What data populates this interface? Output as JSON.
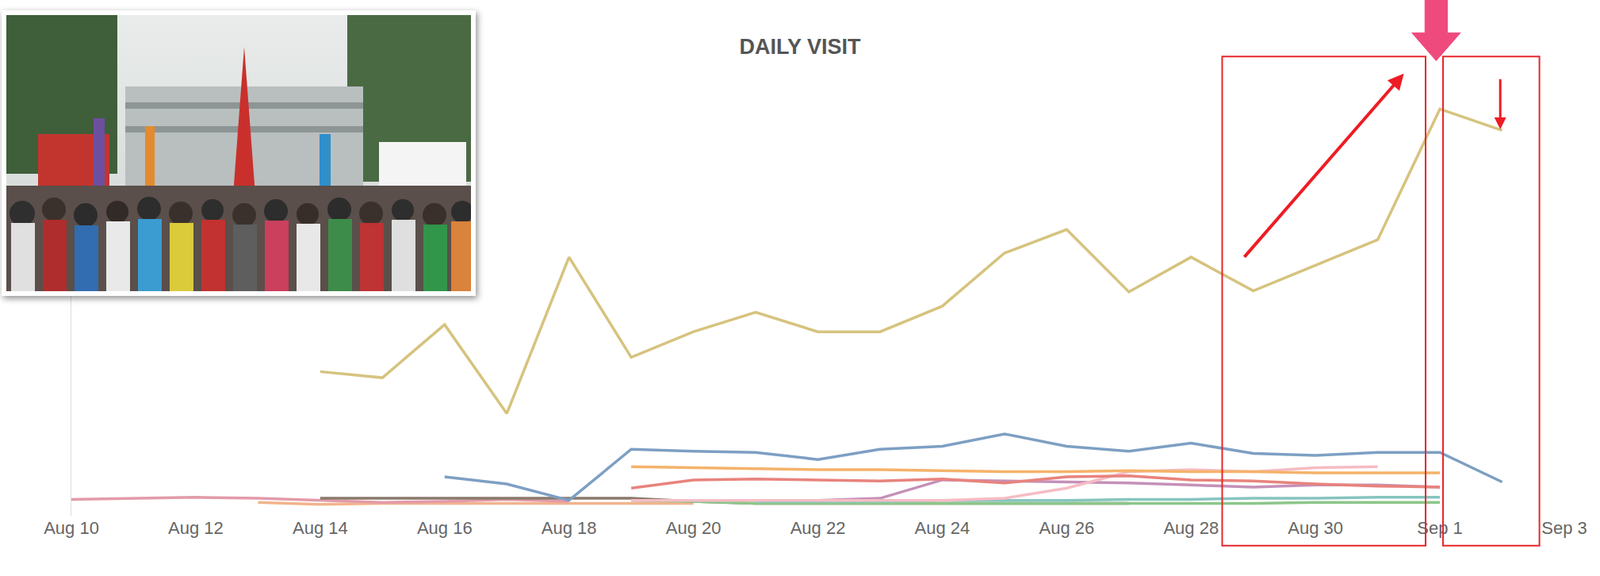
{
  "chart_data": {
    "type": "line",
    "title": "DAILY VISIT",
    "categories": [
      "Aug 10",
      null,
      "Aug 12",
      null,
      "Aug 14",
      null,
      "Aug 16",
      null,
      "Aug 18",
      null,
      "Aug 20",
      null,
      "Aug 22",
      null,
      "Aug 24",
      null,
      "Aug 26",
      null,
      "Aug 28",
      null,
      "Aug 30",
      null,
      "Sep 1",
      null,
      "Sep 3"
    ],
    "series": [
      {
        "color": "#f2b48c",
        "values": [
          null,
          null,
          null,
          13,
          11,
          12,
          12,
          12,
          12,
          12,
          12,
          null,
          null,
          null,
          null,
          null,
          null,
          null,
          null,
          null,
          null,
          null,
          null,
          null,
          null
        ]
      },
      {
        "color": "#e39aa9",
        "values": [
          16,
          17,
          18,
          17,
          15,
          13,
          14,
          16,
          14,
          null,
          null,
          null,
          null,
          null,
          null,
          null,
          null,
          null,
          null,
          null,
          null,
          null,
          null,
          null,
          null
        ]
      },
      {
        "color": "#8a7a6c",
        "values": [
          null,
          null,
          null,
          null,
          17,
          17,
          17,
          17,
          17,
          17,
          14,
          12,
          12,
          12,
          12,
          12,
          12,
          12,
          null,
          null,
          null,
          null,
          null,
          null,
          null
        ]
      },
      {
        "color": "#8cc68a",
        "values": [
          null,
          null,
          null,
          null,
          null,
          null,
          null,
          null,
          null,
          15,
          14,
          12,
          12,
          12,
          12,
          12,
          12,
          12,
          12,
          12,
          13,
          13,
          13,
          null,
          null
        ]
      },
      {
        "color": "#86c5bf",
        "values": [
          null,
          null,
          null,
          null,
          null,
          null,
          null,
          null,
          null,
          null,
          null,
          14,
          14,
          14,
          15,
          15,
          15,
          16,
          16,
          17,
          17,
          18,
          18,
          null,
          null
        ]
      },
      {
        "color": "#c590b8",
        "values": [
          null,
          null,
          null,
          null,
          null,
          null,
          null,
          null,
          null,
          null,
          null,
          null,
          15,
          17,
          35,
          34,
          33,
          32,
          30,
          28,
          30,
          30,
          28,
          null,
          null
        ]
      },
      {
        "color": "#f6bcc4",
        "values": [
          null,
          null,
          null,
          null,
          null,
          null,
          null,
          null,
          null,
          15,
          15,
          15,
          15,
          15,
          15,
          17,
          27,
          43,
          45,
          43,
          47,
          48,
          null,
          null,
          null
        ]
      },
      {
        "color": "#e8837d",
        "values": [
          null,
          null,
          null,
          null,
          null,
          null,
          null,
          null,
          null,
          27,
          35,
          36,
          35,
          34,
          36,
          32,
          38,
          39,
          35,
          34,
          31,
          29,
          28,
          null,
          null
        ]
      },
      {
        "color": "#f5b26a",
        "values": [
          null,
          null,
          null,
          null,
          null,
          null,
          null,
          null,
          null,
          48,
          47,
          46,
          45,
          45,
          44,
          43,
          43,
          44,
          43,
          43,
          42,
          42,
          42,
          null,
          null
        ]
      },
      {
        "color": "#7d9fc3",
        "values": [
          null,
          null,
          null,
          null,
          null,
          null,
          38,
          31,
          15,
          65,
          63,
          62,
          55,
          65,
          68,
          80,
          68,
          63,
          71,
          61,
          59,
          62,
          62,
          33,
          null
        ]
      },
      {
        "color": "#d6c37e",
        "values": [
          null,
          null,
          null,
          null,
          141,
          135,
          187,
          100,
          253,
          155,
          180,
          199,
          180,
          180,
          205,
          257,
          280,
          219,
          253,
          220,
          245,
          270,
          398,
          377,
          null
        ]
      }
    ],
    "ylim": [
      0,
      420
    ],
    "yticks": [],
    "tick_labels": "x",
    "grid": false
  }
}
